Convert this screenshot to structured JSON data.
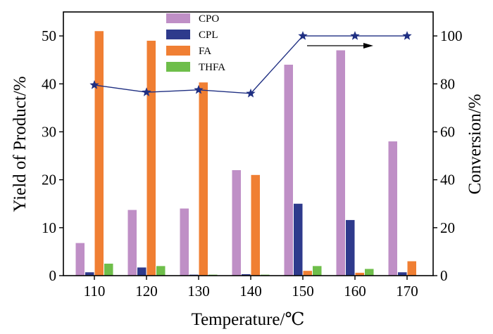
{
  "chart_data": {
    "type": "bar",
    "xlabel": "Temperature/℃",
    "ylabel": "Yield of Product/%",
    "y2label": "Conversion/%",
    "categories": [
      "110",
      "120",
      "130",
      "140",
      "150",
      "160",
      "170"
    ],
    "ylim": [
      0,
      55
    ],
    "y2lim": [
      0,
      110
    ],
    "yticks": [
      "0",
      "10",
      "20",
      "30",
      "40",
      "50"
    ],
    "y2ticks": [
      "0",
      "20",
      "40",
      "60",
      "80",
      "100"
    ],
    "series": [
      {
        "name": "CPO",
        "color": "#bf8fc6",
        "values": [
          6.8,
          13.7,
          14.0,
          22.0,
          44.0,
          47.0,
          28.0
        ]
      },
      {
        "name": "CPL",
        "color": "#2e3a8c",
        "values": [
          0.7,
          1.7,
          0.2,
          0.3,
          15.0,
          11.6,
          0.7
        ]
      },
      {
        "name": "FA",
        "color": "#f07f33",
        "values": [
          51.0,
          49.0,
          40.3,
          21.0,
          1.0,
          0.6,
          3.0
        ]
      },
      {
        "name": "THFA",
        "color": "#6ebe4a",
        "values": [
          2.5,
          2.0,
          0.2,
          0.2,
          2.0,
          1.4,
          0.0
        ]
      }
    ],
    "line_series": {
      "axis": "right",
      "color": "#1f2f82",
      "marker": "star",
      "values": [
        79.5,
        76.5,
        77.5,
        76.0,
        100.0,
        100.0,
        100.0
      ]
    },
    "annotations": [
      {
        "type": "arrow",
        "direction": "right",
        "meaning": "points to right axis (conversion)"
      }
    ],
    "legend_position": "top-center"
  }
}
